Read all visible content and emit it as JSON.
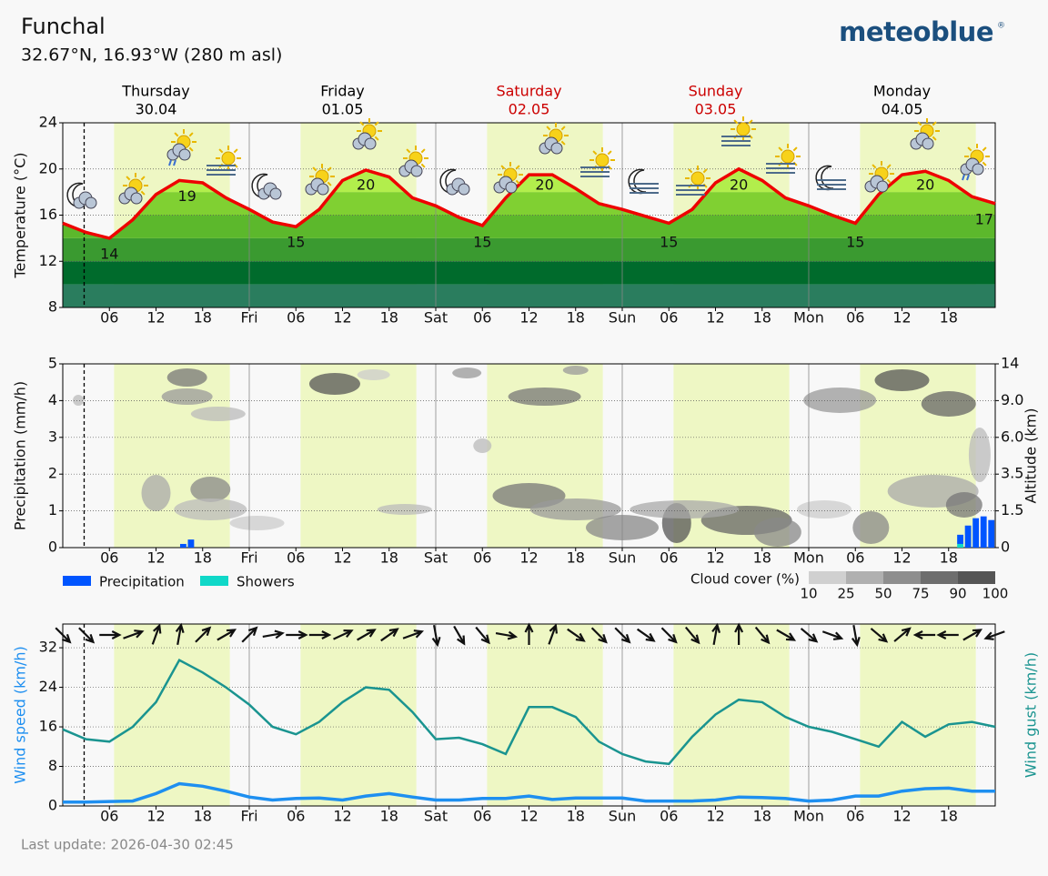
{
  "header": {
    "location": "Funchal",
    "coordinates": "32.67°N, 16.93°W (280 m asl)",
    "logo": "meteoblue",
    "logo_mark": "®"
  },
  "days": [
    {
      "name": "Thursday",
      "date": "30.04",
      "color": "#000000"
    },
    {
      "name": "Friday",
      "date": "01.05",
      "color": "#000000"
    },
    {
      "name": "Saturday",
      "date": "02.05",
      "color": "#cc0000"
    },
    {
      "name": "Sunday",
      "date": "03.05",
      "color": "#cc0000"
    },
    {
      "name": "Monday",
      "date": "04.05",
      "color": "#000000"
    }
  ],
  "time_axis": {
    "xlim": [
      0,
      120
    ],
    "xticks": [
      {
        "value": 6,
        "label": "06"
      },
      12,
      18,
      {
        "value": 24,
        "label": "Fri"
      },
      {
        "value": 30,
        "label": "06"
      },
      {
        "value": 36,
        "label": "12"
      },
      {
        "value": 42,
        "label": "18"
      },
      {
        "value": 48,
        "label": "Sat"
      },
      {
        "value": 54,
        "label": "06"
      },
      {
        "value": 60,
        "label": "12"
      },
      {
        "value": 66,
        "label": "18"
      },
      {
        "value": 72,
        "label": "Sun"
      },
      {
        "value": 78,
        "label": "06"
      },
      {
        "value": 84,
        "label": "12"
      },
      {
        "value": 90,
        "label": "18"
      },
      {
        "value": 96,
        "label": "Mon"
      },
      {
        "value": 102,
        "label": "06"
      },
      {
        "value": 108,
        "label": "12"
      },
      {
        "value": 114,
        "label": "18"
      }
    ],
    "daylight": [
      [
        6.6,
        21.5
      ],
      [
        30.6,
        45.5
      ],
      [
        54.6,
        69.5
      ],
      [
        78.6,
        93.5
      ],
      [
        102.6,
        117.5
      ]
    ],
    "daylight_color": "#eef7c4",
    "now": 2.75
  },
  "chart_data": [
    {
      "type": "line",
      "y_label": "Temperature (°C)",
      "ylim": [
        8,
        24
      ],
      "yticks": [
        8,
        12,
        16,
        20,
        24
      ],
      "grid": true,
      "color": "#ee0000",
      "x": [
        0,
        3,
        6,
        9,
        12,
        15,
        18,
        21,
        24,
        27,
        30,
        33,
        36,
        39,
        42,
        45,
        48,
        51,
        54,
        57,
        60,
        63,
        66,
        69,
        72,
        75,
        78,
        81,
        84,
        87,
        90,
        93,
        96,
        99,
        102,
        105,
        108,
        111,
        114,
        117,
        120
      ],
      "values": [
        15.3,
        14.5,
        14.0,
        15.6,
        17.8,
        19.0,
        18.8,
        17.5,
        16.5,
        15.4,
        15.0,
        16.5,
        19.0,
        19.9,
        19.3,
        17.5,
        16.8,
        15.8,
        15.1,
        17.5,
        19.5,
        19.5,
        18.3,
        17.0,
        16.5,
        15.9,
        15.3,
        16.5,
        18.8,
        20.0,
        19.0,
        17.5,
        16.8,
        16.0,
        15.3,
        17.8,
        19.5,
        19.8,
        19.0,
        17.6,
        17.0
      ],
      "color_bands": [
        {
          "from": 8,
          "to": 10,
          "color": "#2a7d5e"
        },
        {
          "from": 10,
          "to": 12,
          "color": "#006b2c"
        },
        {
          "from": 12,
          "to": 14,
          "color": "#3a9a30"
        },
        {
          "from": 14,
          "to": 16,
          "color": "#5cb82c"
        },
        {
          "from": 16,
          "to": 18,
          "color": "#80d032"
        },
        {
          "from": 18,
          "to": 24,
          "color": "#b2ee4c"
        }
      ],
      "annotations": [
        {
          "x": 6,
          "value": 14
        },
        {
          "x": 16,
          "value": 19
        },
        {
          "x": 30,
          "value": 15
        },
        {
          "x": 39,
          "value": 20
        },
        {
          "x": 54,
          "value": 15
        },
        {
          "x": 62,
          "value": 20
        },
        {
          "x": 78,
          "value": 15
        },
        {
          "x": 87,
          "value": 20
        },
        {
          "x": 102,
          "value": 15
        },
        {
          "x": 111,
          "value": 20
        },
        {
          "x": 120,
          "value": 17
        }
      ]
    },
    {
      "type": "bar",
      "y_label": "Precipitation (mm/h)",
      "y2_label": "Altitude (km)",
      "ylim": [
        0,
        5
      ],
      "yticks": [
        0,
        1,
        2,
        3,
        4,
        5
      ],
      "grid": true,
      "y2ticks": [
        0,
        1.5,
        3.5,
        {
          "value": 6,
          "label": "6.0"
        },
        {
          "value": 9,
          "label": "9.0"
        },
        14
      ],
      "series": [
        {
          "name": "Showers",
          "color": "#10d8c8",
          "x": [
            115.5
          ],
          "values": [
            0.1
          ]
        },
        {
          "name": "Precipitation",
          "color": "#0055ff",
          "x": [
            15.5,
            16.5,
            115.5,
            116.5,
            117.5,
            118.5,
            119.5
          ],
          "values": [
            0.1,
            0.22,
            0.25,
            0.6,
            0.8,
            0.85,
            0.75
          ]
        }
      ],
      "cloud_legend": {
        "title": "Cloud cover (%)",
        "ticks": [
          10,
          25,
          50,
          75,
          90,
          100
        ],
        "colors": [
          "#d0d0d0",
          "#b0b0b0",
          "#8e8e8e",
          "#6e6e6e",
          "#555555"
        ]
      }
    },
    {
      "type": "line",
      "y_label": "Wind speed (km/h)",
      "y2_label": "Wind gust (km/h)",
      "ylim": [
        0,
        36.8
      ],
      "yticks": [
        0,
        8,
        16,
        24,
        32
      ],
      "grid": true,
      "x": [
        0,
        3,
        6,
        9,
        12,
        15,
        18,
        21,
        24,
        27,
        30,
        33,
        36,
        39,
        42,
        45,
        48,
        51,
        54,
        57,
        60,
        63,
        66,
        69,
        72,
        75,
        78,
        81,
        84,
        87,
        90,
        93,
        96,
        99,
        102,
        105,
        108,
        111,
        114,
        117,
        120
      ],
      "series": [
        {
          "name": "Wind speed",
          "color": "#1e8ff0",
          "values": [
            0.8,
            0.8,
            0.9,
            1.0,
            2.5,
            4.5,
            4.0,
            3.0,
            1.8,
            1.2,
            1.5,
            1.6,
            1.2,
            2.0,
            2.5,
            1.8,
            1.2,
            1.2,
            1.5,
            1.5,
            2.0,
            1.3,
            1.6,
            1.6,
            1.6,
            1.0,
            1.0,
            1.0,
            1.2,
            1.8,
            1.7,
            1.5,
            1.0,
            1.2,
            2.0,
            2.0,
            3.0,
            3.5,
            3.6,
            3.0,
            3.0
          ]
        },
        {
          "name": "Wind gust",
          "color": "#1a9490",
          "values": [
            15.5,
            13.5,
            13.0,
            16.0,
            21.0,
            29.5,
            27.0,
            24.0,
            20.5,
            16.0,
            14.5,
            17.0,
            21.0,
            24.0,
            23.5,
            19.0,
            13.5,
            13.8,
            12.5,
            10.5,
            20.0,
            20.0,
            18.0,
            13.0,
            10.5,
            9.0,
            8.5,
            14.0,
            18.5,
            21.5,
            21.0,
            18.0,
            16.0,
            15.0,
            13.5,
            12.0,
            17.0,
            14.0,
            16.5,
            17.0,
            16.0
          ]
        }
      ],
      "wind_direction": [
        315,
        315,
        270,
        250,
        200,
        190,
        225,
        240,
        225,
        260,
        270,
        270,
        245,
        240,
        235,
        250,
        350,
        330,
        320,
        280,
        180,
        200,
        305,
        315,
        315,
        305,
        315,
        320,
        190,
        180,
        320,
        300,
        310,
        290,
        350,
        310,
        230,
        90,
        90,
        240,
        70
      ]
    }
  ],
  "footer": {
    "last_update": "Last update: 2026-04-30 02:45"
  }
}
